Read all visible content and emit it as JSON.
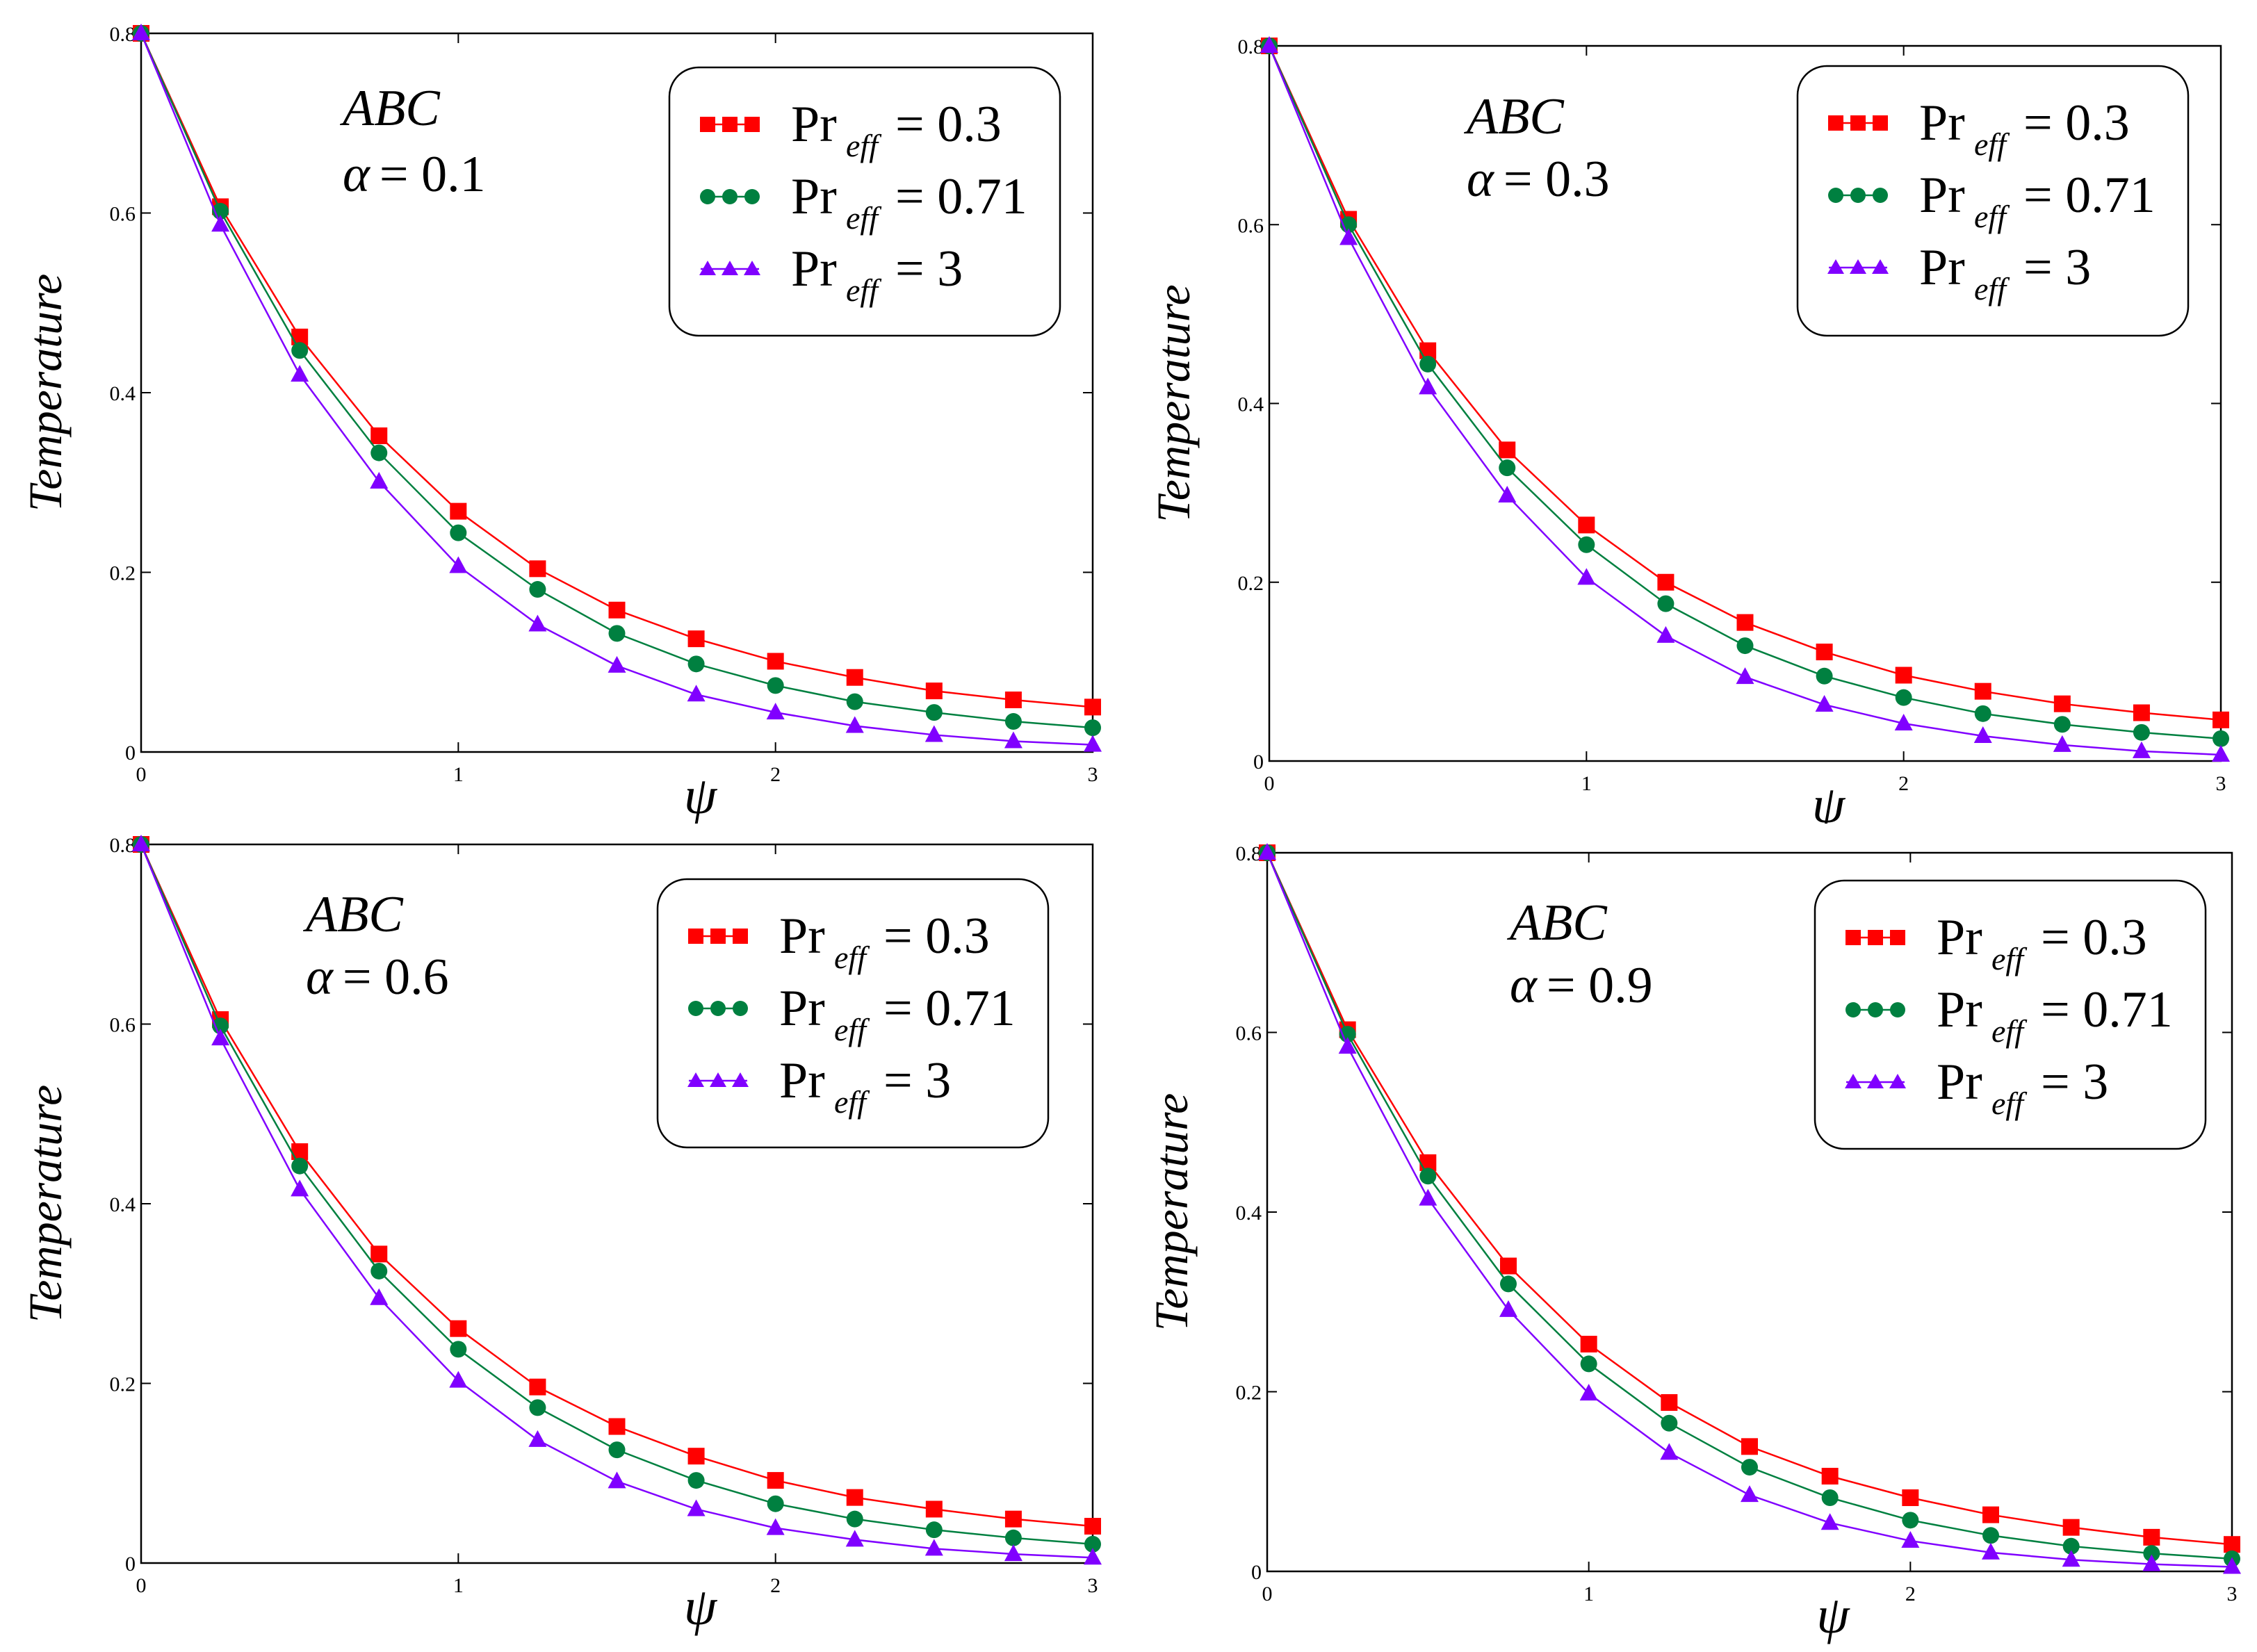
{
  "chart_data": [
    {
      "type": "line",
      "annotation": {
        "line1": "ABC",
        "alpha_symbol": "α",
        "alpha_text": "= 0.1"
      },
      "xlabel": "ψ",
      "ylabel": "Temperature",
      "xlim": [
        0,
        3
      ],
      "ylim": [
        0,
        0.8
      ],
      "xticks": [
        "0",
        "1",
        "2",
        "3"
      ],
      "yticks": [
        "0",
        "0.2",
        "0.4",
        "0.6",
        "0.8"
      ],
      "grid": false,
      "legend_position": "top-right",
      "x": [
        0,
        0.25,
        0.5,
        0.75,
        1,
        1.25,
        1.5,
        1.75,
        2,
        2.25,
        2.5,
        2.75,
        3
      ],
      "series": [
        {
          "name": "Pr",
          "sub": "eff",
          "value": "= 0.3",
          "color": "#ff0000",
          "marker": "square",
          "values": [
            0.8,
            0.607,
            0.462,
            0.352,
            0.268,
            0.204,
            0.158,
            0.126,
            0.101,
            0.083,
            0.068,
            0.058,
            0.05
          ]
        },
        {
          "name": "Pr",
          "sub": "eff",
          "value": "= 0.71",
          "color": "#008040",
          "marker": "circle",
          "values": [
            0.8,
            0.602,
            0.447,
            0.333,
            0.244,
            0.181,
            0.132,
            0.098,
            0.074,
            0.056,
            0.044,
            0.034,
            0.027
          ]
        },
        {
          "name": "Pr",
          "sub": "eff",
          "value": "= 3",
          "color": "#8000ff",
          "marker": "triangle",
          "values": [
            0.8,
            0.587,
            0.42,
            0.301,
            0.207,
            0.142,
            0.096,
            0.064,
            0.044,
            0.029,
            0.019,
            0.012,
            0.008
          ]
        }
      ]
    },
    {
      "type": "line",
      "annotation": {
        "line1": "ABC",
        "alpha_symbol": "α",
        "alpha_text": "= 0.3"
      },
      "xlabel": "ψ",
      "ylabel": "Temperature",
      "xlim": [
        0,
        3
      ],
      "ylim": [
        0,
        0.8
      ],
      "xticks": [
        "0",
        "1",
        "2",
        "3"
      ],
      "yticks": [
        "0",
        "0.2",
        "0.4",
        "0.6",
        "0.8"
      ],
      "grid": false,
      "legend_position": "top-right",
      "x": [
        0,
        0.25,
        0.5,
        0.75,
        1,
        1.25,
        1.5,
        1.75,
        2,
        2.25,
        2.5,
        2.75,
        3
      ],
      "series": [
        {
          "name": "Pr",
          "sub": "eff",
          "value": "= 0.3",
          "color": "#ff0000",
          "marker": "square",
          "values": [
            0.8,
            0.606,
            0.459,
            0.348,
            0.264,
            0.2,
            0.155,
            0.122,
            0.096,
            0.078,
            0.064,
            0.054,
            0.046
          ]
        },
        {
          "name": "Pr",
          "sub": "eff",
          "value": "= 0.71",
          "color": "#008040",
          "marker": "circle",
          "values": [
            0.8,
            0.6,
            0.444,
            0.328,
            0.242,
            0.176,
            0.129,
            0.095,
            0.071,
            0.053,
            0.041,
            0.032,
            0.025
          ]
        },
        {
          "name": "Pr",
          "sub": "eff",
          "value": "= 3",
          "color": "#8000ff",
          "marker": "triangle",
          "values": [
            0.8,
            0.585,
            0.418,
            0.297,
            0.205,
            0.14,
            0.094,
            0.063,
            0.042,
            0.028,
            0.018,
            0.011,
            0.007
          ]
        }
      ]
    },
    {
      "type": "line",
      "annotation": {
        "line1": "ABC",
        "alpha_symbol": "α",
        "alpha_text": "= 0.6"
      },
      "xlabel": "ψ",
      "ylabel": "Temperature",
      "xlim": [
        0,
        3
      ],
      "ylim": [
        0,
        0.8
      ],
      "xticks": [
        "0",
        "1",
        "2",
        "3"
      ],
      "yticks": [
        "0",
        "0.2",
        "0.4",
        "0.6",
        "0.8"
      ],
      "grid": false,
      "legend_position": "top-right",
      "x": [
        0,
        0.25,
        0.5,
        0.75,
        1,
        1.25,
        1.5,
        1.75,
        2,
        2.25,
        2.5,
        2.75,
        3
      ],
      "series": [
        {
          "name": "Pr",
          "sub": "eff",
          "value": "= 0.3",
          "color": "#ff0000",
          "marker": "square",
          "values": [
            0.8,
            0.605,
            0.458,
            0.344,
            0.261,
            0.196,
            0.152,
            0.119,
            0.092,
            0.073,
            0.06,
            0.049,
            0.041
          ]
        },
        {
          "name": "Pr",
          "sub": "eff",
          "value": "= 0.71",
          "color": "#008040",
          "marker": "circle",
          "values": [
            0.8,
            0.598,
            0.442,
            0.325,
            0.238,
            0.173,
            0.126,
            0.092,
            0.066,
            0.049,
            0.037,
            0.028,
            0.021
          ]
        },
        {
          "name": "Pr",
          "sub": "eff",
          "value": "= 3",
          "color": "#8000ff",
          "marker": "triangle",
          "values": [
            0.8,
            0.584,
            0.416,
            0.295,
            0.203,
            0.137,
            0.091,
            0.06,
            0.039,
            0.026,
            0.016,
            0.01,
            0.006
          ]
        }
      ]
    },
    {
      "type": "line",
      "annotation": {
        "line1": "ABC",
        "alpha_symbol": "α",
        "alpha_text": "= 0.9"
      },
      "xlabel": "ψ",
      "ylabel": "Temperature",
      "xlim": [
        0,
        3
      ],
      "ylim": [
        0,
        0.8
      ],
      "xticks": [
        "0",
        "1",
        "2",
        "3"
      ],
      "yticks": [
        "0",
        "0.2",
        "0.4",
        "0.6",
        "0.8"
      ],
      "grid": false,
      "legend_position": "top-right",
      "x": [
        0,
        0.25,
        0.5,
        0.75,
        1,
        1.25,
        1.5,
        1.75,
        2,
        2.25,
        2.5,
        2.75,
        3
      ],
      "series": [
        {
          "name": "Pr",
          "sub": "eff",
          "value": "= 0.3",
          "color": "#ff0000",
          "marker": "square",
          "values": [
            0.8,
            0.603,
            0.455,
            0.34,
            0.253,
            0.188,
            0.139,
            0.106,
            0.082,
            0.063,
            0.049,
            0.038,
            0.03
          ]
        },
        {
          "name": "Pr",
          "sub": "eff",
          "value": "= 0.71",
          "color": "#008040",
          "marker": "circle",
          "values": [
            0.8,
            0.598,
            0.44,
            0.32,
            0.231,
            0.165,
            0.116,
            0.082,
            0.057,
            0.04,
            0.028,
            0.02,
            0.014
          ]
        },
        {
          "name": "Pr",
          "sub": "eff",
          "value": "= 3",
          "color": "#8000ff",
          "marker": "triangle",
          "values": [
            0.8,
            0.584,
            0.415,
            0.291,
            0.198,
            0.132,
            0.085,
            0.054,
            0.034,
            0.021,
            0.013,
            0.008,
            0.005
          ]
        }
      ]
    }
  ]
}
